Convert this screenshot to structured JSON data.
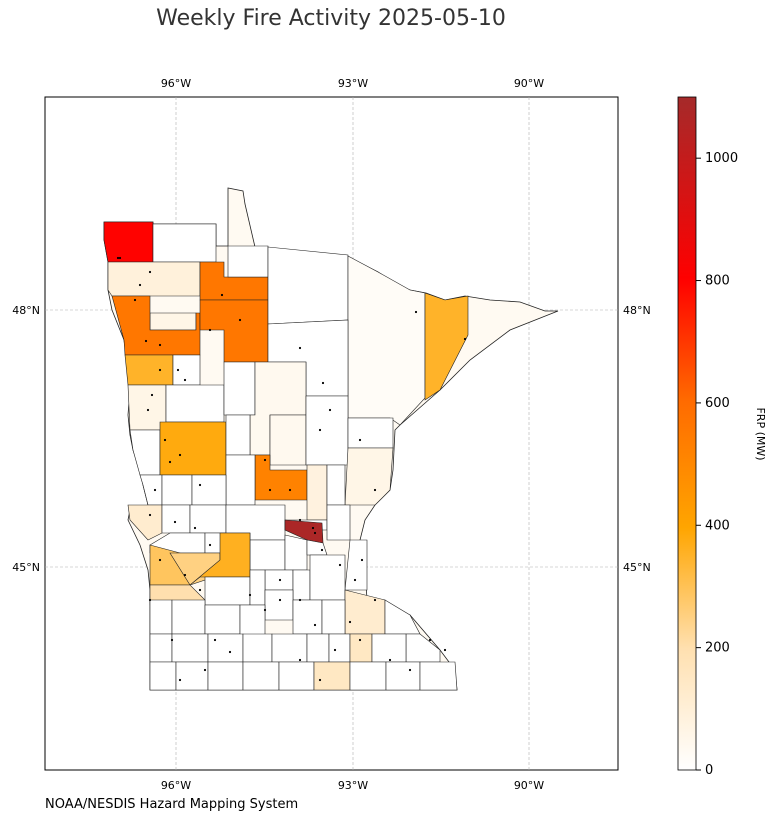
{
  "title": "Weekly Fire Activity 2025-05-10",
  "footer": "NOAA/NESDIS Hazard Mapping System",
  "colorbar": {
    "label": "FRP (MW)",
    "min": 0,
    "max": 1100,
    "ticks": [
      0,
      200,
      400,
      600,
      800,
      1000
    ],
    "colors": [
      "#ffffff",
      "#fff1dc",
      "#ffd391",
      "#ffa500",
      "#ff6a00",
      "#ff0000",
      "#a52a2a"
    ]
  },
  "map": {
    "lon_ticks": [
      "96°W",
      "93°W",
      "90°W"
    ],
    "lat_ticks": [
      "48°N",
      "45°N"
    ]
  },
  "counties_frp": {
    "kittson": 800,
    "marshall": 90,
    "polk": 560,
    "red_lake": 60,
    "norman": 350,
    "beltrami": 560,
    "clearwater_south": 560,
    "lake": 350,
    "otter_tail": 380,
    "todd": 520,
    "mille_lacs": 80,
    "anoka_sherburne": 1080,
    "kandiyohi": 290,
    "renville": 360,
    "chippewa": 250,
    "yellow_medicine": 200,
    "cass": 40,
    "crow_wing": 40,
    "pine": 60,
    "stevens": 120,
    "clay": 60,
    "st_louis": 20,
    "koochiching": 0,
    "goodhue": 120,
    "dodge": 150,
    "freeborn": 150
  }
}
